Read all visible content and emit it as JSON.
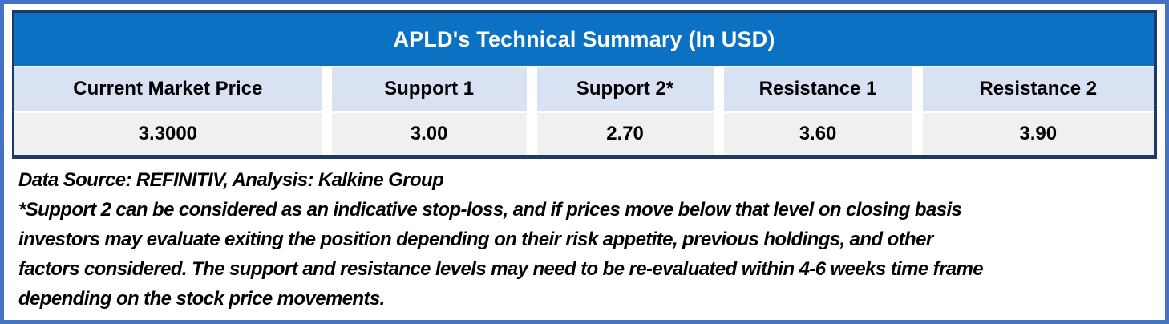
{
  "table": {
    "title": "APLD's Technical Summary (In USD)",
    "columns": [
      {
        "label": "Current Market Price",
        "value": "3.3000"
      },
      {
        "label": "Support 1",
        "value": "3.00"
      },
      {
        "label": "Support 2*",
        "value": "2.70"
      },
      {
        "label": "Resistance 1",
        "value": "3.60"
      },
      {
        "label": "Resistance 2",
        "value": "3.90"
      }
    ]
  },
  "footer": {
    "source_line": "Data Source: REFINITIV, Analysis: Kalkine Group",
    "footnote_lines": [
      "*Support 2 can be considered as an indicative stop-loss, and if prices move below that level on closing basis",
      "investors may evaluate exiting the position depending on their risk appetite, previous holdings, and other",
      "factors considered. The support and resistance levels may need to be re-evaluated within 4-6 weeks time frame",
      "depending on the stock price movements."
    ]
  },
  "colors": {
    "outer_frame_blue": "#4472C4",
    "title_bar_blue": "#0B71C2",
    "table_border_navy": "#1F3864",
    "header_cell_bg": "#D9E2F3",
    "value_cell_bg": "#F0F0F1",
    "title_text": "#FFFFFF",
    "body_text": "#000000"
  }
}
